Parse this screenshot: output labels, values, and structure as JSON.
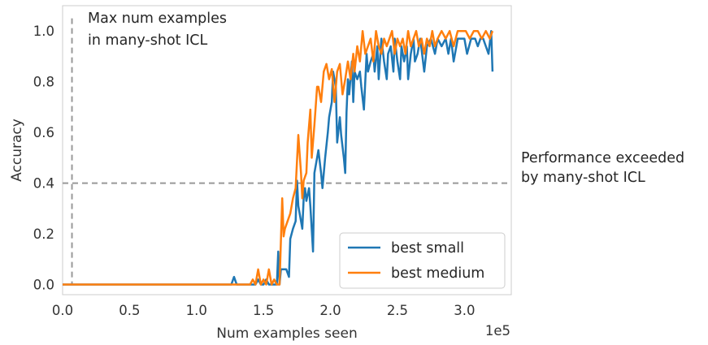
{
  "chart_data": {
    "type": "line",
    "title": "",
    "xlabel": "Num examples seen",
    "ylabel": "Accuracy",
    "x_offset_label": "1e5",
    "xlim": [
      0,
      3.35
    ],
    "ylim": [
      -0.04,
      1.1
    ],
    "x_ticks": [
      0.0,
      0.5,
      1.0,
      1.5,
      2.0,
      2.5,
      3.0
    ],
    "x_tick_labels": [
      "0.0",
      "0.5",
      "1.0",
      "1.5",
      "2.0",
      "2.5",
      "3.0"
    ],
    "y_ticks": [
      0.0,
      0.2,
      0.4,
      0.6,
      0.8,
      1.0
    ],
    "y_tick_labels": [
      "0.0",
      "0.2",
      "0.4",
      "0.6",
      "0.8",
      "1.0"
    ],
    "grid": false,
    "legend_position": "bottom-right",
    "reference_lines": [
      {
        "orientation": "vertical",
        "value": 0.07,
        "style": "dashed",
        "color": "#999999",
        "label": "Max num examples\nin many-shot ICL"
      },
      {
        "orientation": "horizontal",
        "value": 0.4,
        "style": "dashed",
        "color": "#999999",
        "label": "Performance exceeded\nby many-shot ICL"
      }
    ],
    "series": [
      {
        "name": "best small",
        "color": "#1f77b4",
        "points": [
          [
            0.0,
            0.0
          ],
          [
            0.3,
            0.0
          ],
          [
            0.6,
            0.0
          ],
          [
            0.9,
            0.0
          ],
          [
            1.2,
            0.0
          ],
          [
            1.26,
            0.0
          ],
          [
            1.28,
            0.03
          ],
          [
            1.3,
            0.0
          ],
          [
            1.34,
            0.0
          ],
          [
            1.36,
            0.0
          ],
          [
            1.4,
            0.0
          ],
          [
            1.44,
            0.0
          ],
          [
            1.46,
            0.02
          ],
          [
            1.48,
            0.0
          ],
          [
            1.5,
            0.0
          ],
          [
            1.52,
            0.02
          ],
          [
            1.54,
            0.0
          ],
          [
            1.56,
            0.0
          ],
          [
            1.58,
            0.0
          ],
          [
            1.6,
            0.0
          ],
          [
            1.61,
            0.13
          ],
          [
            1.62,
            0.0
          ],
          [
            1.63,
            0.06
          ],
          [
            1.65,
            0.06
          ],
          [
            1.67,
            0.06
          ],
          [
            1.69,
            0.03
          ],
          [
            1.7,
            0.18
          ],
          [
            1.72,
            0.22
          ],
          [
            1.74,
            0.25
          ],
          [
            1.75,
            0.41
          ],
          [
            1.76,
            0.31
          ],
          [
            1.78,
            0.25
          ],
          [
            1.79,
            0.22
          ],
          [
            1.8,
            0.34
          ],
          [
            1.81,
            0.38
          ],
          [
            1.82,
            0.33
          ],
          [
            1.84,
            0.38
          ],
          [
            1.85,
            0.31
          ],
          [
            1.87,
            0.13
          ],
          [
            1.88,
            0.44
          ],
          [
            1.9,
            0.5
          ],
          [
            1.91,
            0.53
          ],
          [
            1.93,
            0.44
          ],
          [
            1.94,
            0.38
          ],
          [
            1.96,
            0.5
          ],
          [
            1.98,
            0.6
          ],
          [
            1.99,
            0.66
          ],
          [
            2.01,
            0.72
          ],
          [
            2.02,
            0.84
          ],
          [
            2.04,
            0.78
          ],
          [
            2.05,
            0.56
          ],
          [
            2.07,
            0.66
          ],
          [
            2.08,
            0.59
          ],
          [
            2.1,
            0.5
          ],
          [
            2.11,
            0.44
          ],
          [
            2.12,
            0.68
          ],
          [
            2.13,
            0.81
          ],
          [
            2.14,
            0.75
          ],
          [
            2.16,
            0.88
          ],
          [
            2.17,
            0.72
          ],
          [
            2.18,
            0.84
          ],
          [
            2.2,
            0.81
          ],
          [
            2.22,
            0.84
          ],
          [
            2.23,
            0.78
          ],
          [
            2.25,
            0.69
          ],
          [
            2.27,
            0.91
          ],
          [
            2.28,
            0.84
          ],
          [
            2.3,
            0.88
          ],
          [
            2.32,
            0.91
          ],
          [
            2.33,
            0.84
          ],
          [
            2.35,
            0.94
          ],
          [
            2.36,
            0.81
          ],
          [
            2.38,
            0.97
          ],
          [
            2.4,
            0.88
          ],
          [
            2.42,
            0.81
          ],
          [
            2.43,
            0.91
          ],
          [
            2.45,
            0.94
          ],
          [
            2.47,
            0.84
          ],
          [
            2.48,
            0.97
          ],
          [
            2.5,
            0.88
          ],
          [
            2.52,
            0.81
          ],
          [
            2.53,
            0.94
          ],
          [
            2.55,
            0.88
          ],
          [
            2.57,
            0.94
          ],
          [
            2.58,
            0.81
          ],
          [
            2.6,
            0.91
          ],
          [
            2.62,
            0.97
          ],
          [
            2.63,
            0.88
          ],
          [
            2.65,
            0.91
          ],
          [
            2.67,
            0.97
          ],
          [
            2.7,
            0.84
          ],
          [
            2.72,
            0.94
          ],
          [
            2.75,
            0.97
          ],
          [
            2.78,
            0.91
          ],
          [
            2.8,
            0.97
          ],
          [
            2.83,
            0.94
          ],
          [
            2.86,
            0.97
          ],
          [
            2.88,
            0.91
          ],
          [
            2.9,
            0.97
          ],
          [
            2.92,
            0.88
          ],
          [
            2.95,
            0.97
          ],
          [
            2.98,
            0.97
          ],
          [
            3.0,
            0.97
          ],
          [
            3.02,
            0.91
          ],
          [
            3.05,
            0.97
          ],
          [
            3.08,
            0.97
          ],
          [
            3.1,
            0.94
          ],
          [
            3.12,
            0.97
          ],
          [
            3.14,
            0.97
          ],
          [
            3.16,
            0.94
          ],
          [
            3.18,
            0.91
          ],
          [
            3.2,
            1.0
          ],
          [
            3.21,
            0.84
          ]
        ]
      },
      {
        "name": "best medium",
        "color": "#ff7f0e",
        "points": [
          [
            0.0,
            0.0
          ],
          [
            0.3,
            0.0
          ],
          [
            0.6,
            0.0
          ],
          [
            0.9,
            0.0
          ],
          [
            1.2,
            0.0
          ],
          [
            1.4,
            0.0
          ],
          [
            1.42,
            0.02
          ],
          [
            1.44,
            0.0
          ],
          [
            1.46,
            0.06
          ],
          [
            1.48,
            0.0
          ],
          [
            1.5,
            0.02
          ],
          [
            1.52,
            0.0
          ],
          [
            1.54,
            0.06
          ],
          [
            1.56,
            0.0
          ],
          [
            1.58,
            0.02
          ],
          [
            1.6,
            0.0
          ],
          [
            1.62,
            0.0
          ],
          [
            1.64,
            0.34
          ],
          [
            1.65,
            0.19
          ],
          [
            1.66,
            0.22
          ],
          [
            1.68,
            0.25
          ],
          [
            1.7,
            0.28
          ],
          [
            1.72,
            0.34
          ],
          [
            1.74,
            0.38
          ],
          [
            1.76,
            0.59
          ],
          [
            1.78,
            0.44
          ],
          [
            1.79,
            0.34
          ],
          [
            1.8,
            0.41
          ],
          [
            1.82,
            0.44
          ],
          [
            1.83,
            0.56
          ],
          [
            1.85,
            0.69
          ],
          [
            1.86,
            0.5
          ],
          [
            1.88,
            0.63
          ],
          [
            1.9,
            0.78
          ],
          [
            1.91,
            0.78
          ],
          [
            1.93,
            0.72
          ],
          [
            1.95,
            0.84
          ],
          [
            1.97,
            0.87
          ],
          [
            1.99,
            0.81
          ],
          [
            2.01,
            0.85
          ],
          [
            2.03,
            0.72
          ],
          [
            2.05,
            0.84
          ],
          [
            2.07,
            0.87
          ],
          [
            2.09,
            0.75
          ],
          [
            2.11,
            0.81
          ],
          [
            2.13,
            0.88
          ],
          [
            2.15,
            0.81
          ],
          [
            2.17,
            0.91
          ],
          [
            2.18,
            0.84
          ],
          [
            2.2,
            0.94
          ],
          [
            2.22,
            0.88
          ],
          [
            2.24,
            1.0
          ],
          [
            2.26,
            0.91
          ],
          [
            2.28,
            0.94
          ],
          [
            2.3,
            0.97
          ],
          [
            2.32,
            0.88
          ],
          [
            2.34,
            1.0
          ],
          [
            2.36,
            0.94
          ],
          [
            2.38,
            0.91
          ],
          [
            2.4,
            0.97
          ],
          [
            2.42,
            0.94
          ],
          [
            2.44,
            0.97
          ],
          [
            2.46,
            1.0
          ],
          [
            2.48,
            0.91
          ],
          [
            2.5,
            0.97
          ],
          [
            2.52,
            0.94
          ],
          [
            2.54,
            0.97
          ],
          [
            2.56,
            0.91
          ],
          [
            2.58,
            1.0
          ],
          [
            2.6,
            0.94
          ],
          [
            2.62,
            0.97
          ],
          [
            2.64,
            1.0
          ],
          [
            2.66,
            0.94
          ],
          [
            2.68,
            0.97
          ],
          [
            2.7,
            0.91
          ],
          [
            2.72,
            0.97
          ],
          [
            2.74,
            0.94
          ],
          [
            2.76,
            1.0
          ],
          [
            2.78,
            0.94
          ],
          [
            2.8,
            0.97
          ],
          [
            2.83,
            1.0
          ],
          [
            2.86,
            0.97
          ],
          [
            2.89,
            1.0
          ],
          [
            2.92,
            0.94
          ],
          [
            2.95,
            1.0
          ],
          [
            2.98,
            1.0
          ],
          [
            3.01,
            1.0
          ],
          [
            3.04,
            0.97
          ],
          [
            3.07,
            1.0
          ],
          [
            3.1,
            1.0
          ],
          [
            3.13,
            0.97
          ],
          [
            3.16,
            1.0
          ],
          [
            3.19,
            0.97
          ],
          [
            3.21,
            1.0
          ]
        ]
      }
    ]
  }
}
